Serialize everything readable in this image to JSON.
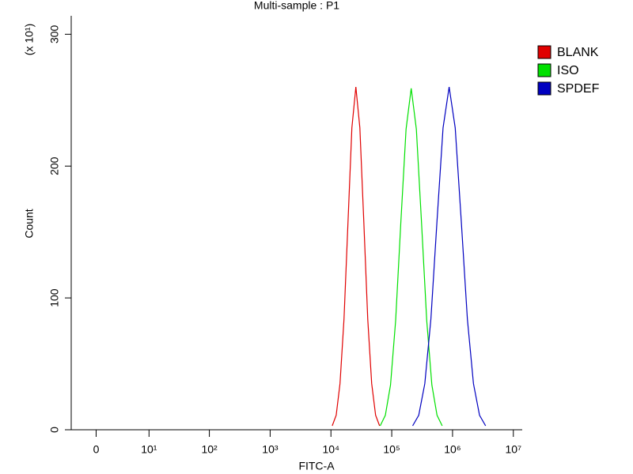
{
  "chart_data": {
    "type": "line",
    "title": "Multi-sample : P1",
    "x_label": "FITC-A",
    "y_label": "Count",
    "y_multiplier": "(x 10¹)",
    "xscale": "biexponential",
    "xlim": [
      -3,
      14000000
    ],
    "ylim": [
      0,
      314
    ],
    "xticks": [
      0,
      {
        "value": 10,
        "label": "10¹"
      },
      {
        "value": 100,
        "label": "10²"
      },
      {
        "value": 1000,
        "label": "10³"
      },
      {
        "value": 10000,
        "label": "10⁴"
      },
      {
        "value": 100000,
        "label": "10⁵"
      },
      {
        "value": 1000000,
        "label": "10⁶"
      },
      {
        "value": 10000000,
        "label": "10⁷"
      }
    ],
    "yticks": [
      0,
      100,
      200,
      300
    ],
    "legend": "right",
    "series": [
      {
        "name": "BLANK",
        "color": "#e00000",
        "x": [
          10500,
          12200,
          14100,
          16400,
          19100,
          22100,
          25700,
          29900,
          34700,
          40300,
          46800,
          54300,
          63100
        ],
        "values": [
          3,
          11,
          35,
          84,
          158,
          229,
          260,
          229,
          158,
          84,
          35,
          11,
          3
        ]
      },
      {
        "name": "ISO",
        "color": "#00e000",
        "x": [
          64600,
          78500,
          95500,
          116000,
          141000,
          172000,
          209000,
          254000,
          309000,
          376000,
          457000,
          556000,
          676000
        ],
        "values": [
          3,
          11,
          34,
          83,
          157,
          228,
          259,
          228,
          157,
          83,
          34,
          11,
          3
        ]
      },
      {
        "name": "SPDEF",
        "color": "#0000c0",
        "x": [
          220800,
          278000,
          349900,
          440600,
          554600,
          698200,
          879000,
          1106600,
          1393000,
          1753900,
          2208000,
          2780000,
          3499000
        ],
        "values": [
          3,
          11,
          35,
          84,
          158,
          229,
          260,
          229,
          158,
          84,
          35,
          11,
          3
        ]
      }
    ]
  }
}
